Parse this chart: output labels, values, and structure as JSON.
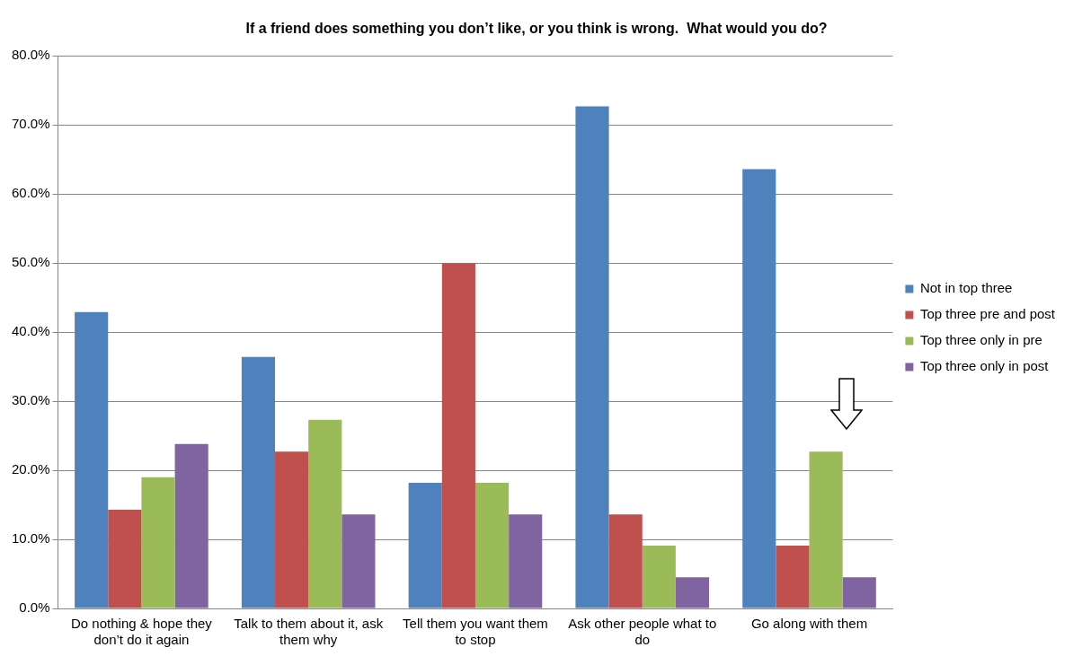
{
  "chart_data": {
    "type": "bar",
    "title": "If a friend does something you don’t like, or you think is wrong.  What would you do?",
    "categories": [
      "Do nothing & hope they don’t do it again",
      "Talk to them about it, ask them why",
      "Tell them you want them to stop",
      "Ask other people what to do",
      "Go along with them"
    ],
    "series": [
      {
        "name": "Not in top three",
        "color": "#4f81bd",
        "values": [
          42.9,
          36.4,
          18.2,
          72.7,
          63.6
        ]
      },
      {
        "name": "Top three pre and post",
        "color": "#c0504d",
        "values": [
          14.3,
          22.7,
          50.0,
          13.6,
          9.1
        ]
      },
      {
        "name": "Top three only in pre",
        "color": "#9bbb59",
        "values": [
          19.0,
          27.3,
          18.2,
          9.1,
          22.7
        ]
      },
      {
        "name": "Top three only in post",
        "color": "#8064a2",
        "values": [
          23.8,
          13.6,
          13.6,
          4.5,
          4.5
        ]
      }
    ],
    "ylim": [
      0,
      80
    ],
    "yticks": [
      {
        "value": 0,
        "label": "0.0%"
      },
      {
        "value": 10,
        "label": "10.0%"
      },
      {
        "value": 20,
        "label": "20.0%"
      },
      {
        "value": 30,
        "label": "30.0%"
      },
      {
        "value": 40,
        "label": "40.0%"
      },
      {
        "value": 50,
        "label": "50.0%"
      },
      {
        "value": 60,
        "label": "60.0%"
      },
      {
        "value": 70,
        "label": "70.0%"
      },
      {
        "value": 80,
        "label": "80.0%"
      }
    ],
    "grid": "y",
    "legend": "right"
  }
}
